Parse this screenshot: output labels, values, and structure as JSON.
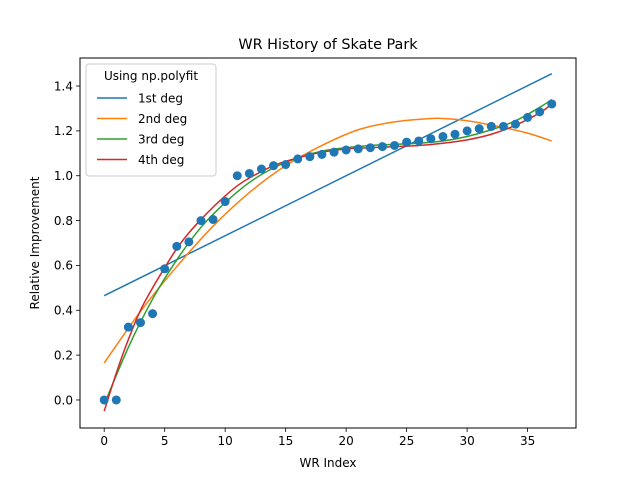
{
  "chart_data": {
    "type": "scatter",
    "title": "WR History of Skate Park",
    "xlabel": "WR Index",
    "ylabel": "Relative Improvement",
    "xlim": [
      -2,
      39
    ],
    "ylim": [
      -0.125,
      1.525
    ],
    "xticks": [
      0,
      5,
      10,
      15,
      20,
      25,
      30,
      35
    ],
    "yticks": [
      0.0,
      0.2,
      0.4,
      0.6,
      0.8,
      1.0,
      1.2,
      1.4
    ],
    "grid": false,
    "legend": {
      "title": "Using np.polyfit",
      "placement": "top-left"
    },
    "points": {
      "color": "#1f77b4",
      "x": [
        0,
        1,
        2,
        3,
        4,
        5,
        6,
        7,
        8,
        9,
        10,
        11,
        12,
        13,
        14,
        15,
        16,
        17,
        18,
        19,
        20,
        21,
        22,
        23,
        24,
        25,
        26,
        27,
        28,
        29,
        30,
        31,
        32,
        33,
        34,
        35,
        36,
        37
      ],
      "y": [
        0.0,
        0.0,
        0.325,
        0.345,
        0.385,
        0.585,
        0.685,
        0.705,
        0.8,
        0.805,
        0.885,
        1.0,
        1.01,
        1.03,
        1.045,
        1.05,
        1.075,
        1.085,
        1.095,
        1.105,
        1.115,
        1.12,
        1.125,
        1.13,
        1.135,
        1.15,
        1.155,
        1.165,
        1.175,
        1.185,
        1.2,
        1.21,
        1.22,
        1.22,
        1.23,
        1.26,
        1.285,
        1.32
      ]
    },
    "series": [
      {
        "name": "1st deg",
        "color": "#1f77b4",
        "x": [
          0,
          37
        ],
        "y": [
          0.465,
          1.455
        ]
      },
      {
        "name": "2nd deg",
        "color": "#ff7f0e",
        "x": [
          0,
          3,
          6,
          9,
          12,
          15,
          18,
          21,
          24,
          27,
          28,
          30,
          33,
          35,
          37
        ],
        "y": [
          0.165,
          0.395,
          0.595,
          0.775,
          0.925,
          1.045,
          1.135,
          1.205,
          1.24,
          1.255,
          1.255,
          1.245,
          1.215,
          1.19,
          1.155
        ]
      },
      {
        "name": "3rd deg",
        "color": "#2ca02c",
        "x": [
          0,
          2,
          4,
          6,
          8,
          10,
          12,
          14,
          16,
          18,
          20,
          22,
          24,
          26,
          28,
          30,
          32,
          34,
          36,
          37
        ],
        "y": [
          -0.02,
          0.235,
          0.45,
          0.625,
          0.77,
          0.88,
          0.97,
          1.035,
          1.08,
          1.11,
          1.125,
          1.135,
          1.14,
          1.145,
          1.155,
          1.175,
          1.205,
          1.245,
          1.305,
          1.34
        ]
      },
      {
        "name": "4th deg",
        "color": "#d62728",
        "x": [
          0,
          1,
          2,
          3,
          4,
          5,
          6,
          7,
          8,
          9,
          10,
          11,
          12,
          14,
          16,
          18,
          20,
          22,
          24,
          26,
          28,
          30,
          32,
          34,
          36,
          37
        ],
        "y": [
          -0.05,
          0.12,
          0.27,
          0.4,
          0.5,
          0.59,
          0.675,
          0.745,
          0.805,
          0.86,
          0.91,
          0.955,
          0.99,
          1.045,
          1.08,
          1.105,
          1.12,
          1.125,
          1.13,
          1.135,
          1.145,
          1.16,
          1.185,
          1.225,
          1.28,
          1.32
        ]
      }
    ]
  }
}
